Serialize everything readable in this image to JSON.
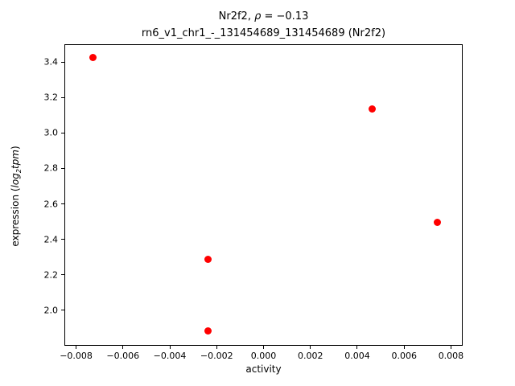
{
  "figure": {
    "title_prefix": "Nr2f2, ",
    "title_rho": "ρ",
    "title_suffix": " = −0.13",
    "subtitle": "rn6_v1_chr1_-_131454689_131454689 (Nr2f2)",
    "xlabel": "activity",
    "ylabel_prefix": "expression (",
    "ylabel_log": "log",
    "ylabel_sub": "2",
    "ylabel_tpm": "tpm",
    "ylabel_suffix": ")"
  },
  "chart_data": {
    "type": "scatter",
    "title": "Nr2f2, ρ = −0.13",
    "subtitle": "rn6_v1_chr1_-_131454689_131454689 (Nr2f2)",
    "xlabel": "activity",
    "ylabel": "expression (log2 tpm)",
    "xlim": [
      -0.0085,
      0.0085
    ],
    "ylim": [
      1.8,
      3.5
    ],
    "x_ticks": [
      -0.008,
      -0.006,
      -0.004,
      -0.002,
      0.0,
      0.002,
      0.004,
      0.006,
      0.008
    ],
    "x_tick_labels": [
      "−0.008",
      "−0.006",
      "−0.004",
      "−0.002",
      "0.000",
      "0.002",
      "0.004",
      "0.006",
      "0.008"
    ],
    "y_ticks": [
      2.0,
      2.2,
      2.4,
      2.6,
      2.8,
      3.0,
      3.2,
      3.4
    ],
    "y_tick_labels": [
      "2.0",
      "2.2",
      "2.4",
      "2.6",
      "2.8",
      "3.0",
      "3.2",
      "3.4"
    ],
    "points": [
      {
        "x": -0.0073,
        "y": 3.43
      },
      {
        "x": 0.0046,
        "y": 3.14
      },
      {
        "x": 0.0074,
        "y": 2.5
      },
      {
        "x": -0.0024,
        "y": 2.29
      },
      {
        "x": -0.0024,
        "y": 1.89
      }
    ],
    "marker_color": "#ff0000",
    "grid": false,
    "legend": "none"
  }
}
